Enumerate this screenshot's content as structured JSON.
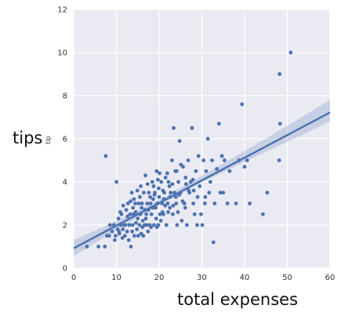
{
  "overlay_labels": {
    "ylabel": "tips",
    "xlabel": "total expenses",
    "ylabel_small": "tip"
  },
  "chart_data": {
    "type": "scatter",
    "title": "",
    "xlabel": "total expenses",
    "ylabel": "tips",
    "xlim": [
      0,
      60
    ],
    "ylim": [
      0,
      12
    ],
    "x_ticks": [
      0,
      10,
      20,
      30,
      40,
      50,
      60
    ],
    "y_ticks": [
      0,
      2,
      4,
      6,
      8,
      10,
      12
    ],
    "grid": true,
    "background_color": "#eaeaf2",
    "point_color": "#4c72b0",
    "regression": {
      "intercept": 0.92,
      "slope": 0.105,
      "ci_band": [
        {
          "x": 0,
          "low": 0.55,
          "high": 1.3
        },
        {
          "x": 10,
          "low": 1.78,
          "high": 2.18
        },
        {
          "x": 20,
          "low": 2.92,
          "high": 3.16
        },
        {
          "x": 30,
          "low": 3.98,
          "high": 4.28
        },
        {
          "x": 40,
          "low": 4.93,
          "high": 5.43
        },
        {
          "x": 50,
          "low": 5.86,
          "high": 6.6
        },
        {
          "x": 60,
          "low": 6.8,
          "high": 7.8
        }
      ]
    },
    "points": [
      [
        3.1,
        1.0
      ],
      [
        5.8,
        1.0
      ],
      [
        7.3,
        1.0
      ],
      [
        7.5,
        5.2
      ],
      [
        8.3,
        1.5
      ],
      [
        8.5,
        2.0
      ],
      [
        9.0,
        1.7
      ],
      [
        9.4,
        2.0
      ],
      [
        9.8,
        1.5
      ],
      [
        10.0,
        4.0
      ],
      [
        10.3,
        1.8
      ],
      [
        10.5,
        2.3
      ],
      [
        10.7,
        1.6
      ],
      [
        11.0,
        2.0
      ],
      [
        11.2,
        2.5
      ],
      [
        11.5,
        1.8
      ],
      [
        11.8,
        2.0
      ],
      [
        12.0,
        1.5
      ],
      [
        12.3,
        2.7
      ],
      [
        12.5,
        1.7
      ],
      [
        12.7,
        3.0
      ],
      [
        13.0,
        2.0
      ],
      [
        13.2,
        2.5
      ],
      [
        13.4,
        1.0
      ],
      [
        13.6,
        3.5
      ],
      [
        13.8,
        2.0
      ],
      [
        14.0,
        2.5
      ],
      [
        14.2,
        1.5
      ],
      [
        14.4,
        3.0
      ],
      [
        14.6,
        2.1
      ],
      [
        14.8,
        1.8
      ],
      [
        15.0,
        2.3
      ],
      [
        15.2,
        3.0
      ],
      [
        15.4,
        2.0
      ],
      [
        15.6,
        2.5
      ],
      [
        15.8,
        1.6
      ],
      [
        16.0,
        3.0
      ],
      [
        16.2,
        2.2
      ],
      [
        16.4,
        3.5
      ],
      [
        16.6,
        2.0
      ],
      [
        16.8,
        4.3
      ],
      [
        17.0,
        2.5
      ],
      [
        17.2,
        3.0
      ],
      [
        17.4,
        1.7
      ],
      [
        17.6,
        3.5
      ],
      [
        17.8,
        2.0
      ],
      [
        18.0,
        3.0
      ],
      [
        18.2,
        2.5
      ],
      [
        18.4,
        4.0
      ],
      [
        18.6,
        3.2
      ],
      [
        18.8,
        2.0
      ],
      [
        19.0,
        3.5
      ],
      [
        19.2,
        2.8
      ],
      [
        19.4,
        4.5
      ],
      [
        19.6,
        3.0
      ],
      [
        19.8,
        2.0
      ],
      [
        20.0,
        3.3
      ],
      [
        20.2,
        2.5
      ],
      [
        20.5,
        4.0
      ],
      [
        20.7,
        3.0
      ],
      [
        21.0,
        2.5
      ],
      [
        21.2,
        3.5
      ],
      [
        21.5,
        4.2
      ],
      [
        21.7,
        2.0
      ],
      [
        22.0,
        3.0
      ],
      [
        22.2,
        4.0
      ],
      [
        22.5,
        2.8
      ],
      [
        22.7,
        3.5
      ],
      [
        23.0,
        5.0
      ],
      [
        23.2,
        2.5
      ],
      [
        23.4,
        6.5
      ],
      [
        23.6,
        3.5
      ],
      [
        23.8,
        4.5
      ],
      [
        24.0,
        3.0
      ],
      [
        24.2,
        2.0
      ],
      [
        24.5,
        4.0
      ],
      [
        24.8,
        5.9
      ],
      [
        25.0,
        3.5
      ],
      [
        25.3,
        2.2
      ],
      [
        25.6,
        4.7
      ],
      [
        25.9,
        3.0
      ],
      [
        26.2,
        4.2
      ],
      [
        26.5,
        2.0
      ],
      [
        26.8,
        5.0
      ],
      [
        27.1,
        3.5
      ],
      [
        27.4,
        4.0
      ],
      [
        27.7,
        6.5
      ],
      [
        28.0,
        3.0
      ],
      [
        28.3,
        2.5
      ],
      [
        28.6,
        4.5
      ],
      [
        28.9,
        2.0
      ],
      [
        29.2,
        5.2
      ],
      [
        29.5,
        3.8
      ],
      [
        29.8,
        2.5
      ],
      [
        30.1,
        2.0
      ],
      [
        30.4,
        5.0
      ],
      [
        30.7,
        3.0
      ],
      [
        31.0,
        4.5
      ],
      [
        31.4,
        6.0
      ],
      [
        31.7,
        3.5
      ],
      [
        32.0,
        4.0
      ],
      [
        32.4,
        5.0
      ],
      [
        32.7,
        1.2
      ],
      [
        33.0,
        3.0
      ],
      [
        33.5,
        4.6
      ],
      [
        34.0,
        6.7
      ],
      [
        34.3,
        3.5
      ],
      [
        34.7,
        5.2
      ],
      [
        35.0,
        3.5
      ],
      [
        35.3,
        5.0
      ],
      [
        36.0,
        3.0
      ],
      [
        36.5,
        4.5
      ],
      [
        38.0,
        3.0
      ],
      [
        38.7,
        5.0
      ],
      [
        39.4,
        7.6
      ],
      [
        40.0,
        4.7
      ],
      [
        40.6,
        5.0
      ],
      [
        41.2,
        3.0
      ],
      [
        44.3,
        2.5
      ],
      [
        45.3,
        3.5
      ],
      [
        48.1,
        5.0
      ],
      [
        48.2,
        9.0
      ],
      [
        48.3,
        6.7
      ],
      [
        50.8,
        10.0
      ],
      [
        7.8,
        1.5
      ],
      [
        9.6,
        1.3
      ],
      [
        10.6,
        1.7
      ],
      [
        11.4,
        1.4
      ],
      [
        12.1,
        2.0
      ],
      [
        12.9,
        1.3
      ],
      [
        13.7,
        1.7
      ],
      [
        14.5,
        2.6
      ],
      [
        15.1,
        1.5
      ],
      [
        15.9,
        2.8
      ],
      [
        16.3,
        1.5
      ],
      [
        16.9,
        2.3
      ],
      [
        17.5,
        2.7
      ],
      [
        18.1,
        1.9
      ],
      [
        18.7,
        3.8
      ],
      [
        19.3,
        2.3
      ],
      [
        19.9,
        3.7
      ],
      [
        20.4,
        2.2
      ],
      [
        21.1,
        3.2
      ],
      [
        21.9,
        4.4
      ],
      [
        22.6,
        3.3
      ],
      [
        23.3,
        2.9
      ],
      [
        24.1,
        4.5
      ],
      [
        24.7,
        3.4
      ],
      [
        25.5,
        3.1
      ],
      [
        26.1,
        2.8
      ],
      [
        26.9,
        3.6
      ],
      [
        27.9,
        4.1
      ],
      [
        29.0,
        3.3
      ],
      [
        30.8,
        3.3
      ],
      [
        13.3,
        3.1
      ],
      [
        14.1,
        3.2
      ],
      [
        15.5,
        3.3
      ],
      [
        16.7,
        2.7
      ],
      [
        17.3,
        3.9
      ],
      [
        18.5,
        2.8
      ],
      [
        19.7,
        4.1
      ],
      [
        20.9,
        3.6
      ],
      [
        22.4,
        3.8
      ],
      [
        24.4,
        2.6
      ],
      [
        11.6,
        2.9
      ],
      [
        12.6,
        2.4
      ],
      [
        13.9,
        2.8
      ],
      [
        14.9,
        3.6
      ],
      [
        15.7,
        3.8
      ],
      [
        16.1,
        1.9
      ],
      [
        17.1,
        2.0
      ],
      [
        17.9,
        3.3
      ],
      [
        18.9,
        3.4
      ],
      [
        19.5,
        1.9
      ],
      [
        20.1,
        4.4
      ],
      [
        20.8,
        2.6
      ],
      [
        21.4,
        2.9
      ],
      [
        22.1,
        2.6
      ],
      [
        23.1,
        3.9
      ],
      [
        23.9,
        3.3
      ],
      [
        25.1,
        4.8
      ],
      [
        26.3,
        3.9
      ],
      [
        28.1,
        3.6
      ],
      [
        10.9,
        2.6
      ]
    ]
  }
}
